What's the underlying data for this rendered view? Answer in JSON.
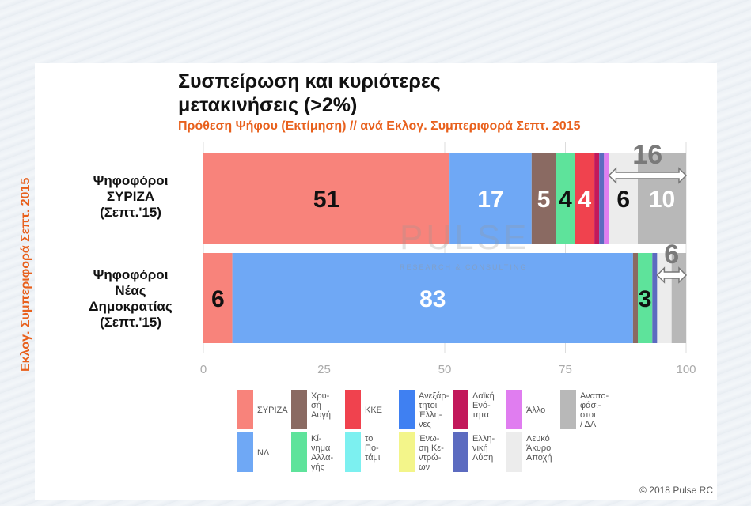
{
  "title": "Συσπείρωση και κυριότερες μετακινήσεις (>2%)",
  "subtitle": "Πρόθεση Ψήφου (Εκτίμηση) // ανά Εκλογ. Συμπεριφορά Σεπτ. 2015",
  "side_label": "Εκλογ. Συμπεριφορά Σεπτ. 2015",
  "watermark": "PULSE",
  "watermark_sub": "RESEARCH & CONSULTING",
  "copyright": "© 2018 Pulse RC",
  "chart_data": {
    "type": "bar",
    "orientation": "horizontal-stacked",
    "xlim": [
      0,
      100
    ],
    "xticks": [
      "0",
      "25",
      "50",
      "75",
      "100"
    ],
    "grid": true,
    "legend_position": "bottom",
    "categories": [
      "Ψηφοφόροι ΣΥΡΙΖΑ (Σεπτ.'15)",
      "Ψηφοφόροι Νέας Δημοκρατίας (Σεπτ.'15)"
    ],
    "category_lines": [
      [
        "Ψηφοφόροι",
        "ΣΥΡΙΖΑ",
        "(Σεπτ.'15)"
      ],
      [
        "Ψηφοφόροι",
        "Νέας",
        "Δημοκρατίας",
        "(Σεπτ.'15)"
      ]
    ],
    "series": [
      {
        "name": "ΣΥΡΙΖΑ",
        "color": "#f8837b",
        "values": [
          51,
          6
        ],
        "labels": [
          "51",
          "6"
        ],
        "label_color": [
          "#111111",
          "#111111"
        ]
      },
      {
        "name": "ΝΔ",
        "color": "#6fa8f5",
        "values": [
          17,
          83
        ],
        "labels": [
          "17",
          "83"
        ],
        "label_color": [
          "#ffffff",
          "#ffffff"
        ]
      },
      {
        "name": "Χρυσή Αυγή",
        "color": "#8a6a62",
        "values": [
          5,
          1
        ],
        "labels": [
          "5",
          ""
        ],
        "label_color": [
          "#ffffff",
          "#ffffff"
        ]
      },
      {
        "name": "Κίνημα Αλλαγής",
        "color": "#5ee39b",
        "values": [
          4,
          3
        ],
        "labels": [
          "4",
          "3"
        ],
        "label_color": [
          "#111111",
          "#111111"
        ]
      },
      {
        "name": "ΚΚΕ",
        "color": "#f0424e",
        "values": [
          4,
          0
        ],
        "labels": [
          "4",
          ""
        ],
        "label_color": [
          "#ffffff",
          "#ffffff"
        ]
      },
      {
        "name": "Λαϊκή Ενότητα",
        "color": "#c2185b",
        "values": [
          1,
          0
        ],
        "labels": [
          "",
          ""
        ],
        "label_color": [
          "#ffffff",
          "#ffffff"
        ]
      },
      {
        "name": "Ελληνική Λύση",
        "color": "#5c6bc0",
        "values": [
          1,
          1
        ],
        "labels": [
          "",
          ""
        ],
        "label_color": [
          "#ffffff",
          "#ffffff"
        ]
      },
      {
        "name": "Άλλο",
        "color": "#e07df0",
        "values": [
          1,
          0
        ],
        "labels": [
          "",
          ""
        ],
        "label_color": [
          "#ffffff",
          "#ffffff"
        ]
      },
      {
        "name": "Λευκό Άκυρο Αποχή",
        "color": "#ececec",
        "values": [
          6,
          3
        ],
        "labels": [
          "6",
          ""
        ],
        "label_color": [
          "#111111",
          "#111111"
        ]
      },
      {
        "name": "Αναποφάσιστοι / ΔΑ",
        "color": "#b8b8b8",
        "values": [
          10,
          3
        ],
        "labels": [
          "10",
          ""
        ],
        "label_color": [
          "#ffffff",
          "#ffffff"
        ]
      }
    ],
    "annotations": [
      {
        "row": 0,
        "text": "16",
        "from": 84,
        "to": 100
      },
      {
        "row": 1,
        "text": "6",
        "from": 94,
        "to": 100
      }
    ]
  },
  "legend": [
    {
      "lines": [
        "ΣΥΡΙΖΑ"
      ],
      "color": "#f8837b"
    },
    {
      "lines": [
        "ΝΔ"
      ],
      "color": "#6fa8f5"
    },
    {
      "lines": [
        "Χρυ-",
        "σή",
        "Αυγή"
      ],
      "color": "#8a6a62"
    },
    {
      "lines": [
        "Κί-",
        "νημα",
        "Αλλα-",
        "γής"
      ],
      "color": "#5ee39b"
    },
    {
      "lines": [
        "ΚΚΕ"
      ],
      "color": "#f0424e"
    },
    {
      "lines": [
        "το",
        "Πο-",
        "τάμι"
      ],
      "color": "#7cf0f0"
    },
    {
      "lines": [
        "Ανεξάρ-",
        "τητοι",
        "Έλλη-",
        "νες"
      ],
      "color": "#3f80f2"
    },
    {
      "lines": [
        "Ένω-",
        "ση Κε-",
        "ντρώ-",
        "ων"
      ],
      "color": "#f3f58a"
    },
    {
      "lines": [
        "Λαϊκή",
        "Ενό-",
        "τητα"
      ],
      "color": "#c2185b"
    },
    {
      "lines": [
        "Ελλη-",
        "νική",
        "Λύση"
      ],
      "color": "#5c6bc0"
    },
    {
      "lines": [
        "Άλλο"
      ],
      "color": "#e07df0"
    },
    {
      "lines": [
        "Λευκό",
        "Άκυρο",
        "Αποχή"
      ],
      "color": "#ececec"
    },
    {
      "lines": [
        "Αναπο-",
        "φάσι-",
        "στοι",
        "/ ΔΑ"
      ],
      "color": "#b8b8b8"
    }
  ]
}
